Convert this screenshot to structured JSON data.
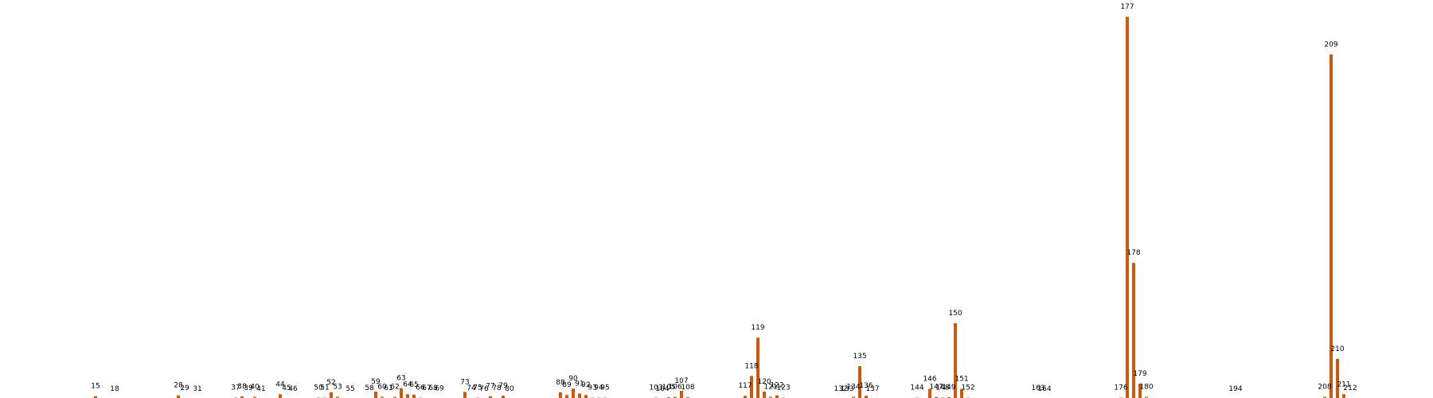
{
  "chart_data": {
    "type": "bar",
    "title": "",
    "xlabel": "",
    "ylabel": "",
    "bar_color": "#cc5a0a",
    "label_color": "#000000",
    "background": "#ffffff",
    "grid": false,
    "axes_visible": false,
    "xlim": [
      0,
      225
    ],
    "ylim": [
      0,
      1000
    ],
    "x": [
      15,
      18,
      28,
      29,
      31,
      37,
      38,
      39,
      40,
      41,
      44,
      45,
      46,
      50,
      51,
      52,
      53,
      55,
      58,
      59,
      60,
      61,
      62,
      63,
      64,
      65,
      66,
      67,
      68,
      69,
      73,
      74,
      75,
      76,
      77,
      78,
      79,
      80,
      88,
      89,
      90,
      91,
      92,
      93,
      94,
      95,
      103,
      104,
      105,
      106,
      107,
      108,
      117,
      118,
      119,
      120,
      121,
      122,
      123,
      132,
      133,
      134,
      135,
      136,
      137,
      144,
      146,
      147,
      148,
      149,
      150,
      151,
      152,
      163,
      164,
      176,
      177,
      178,
      179,
      180,
      194,
      208,
      209,
      210,
      211,
      212
    ],
    "values": [
      7,
      0,
      9,
      2,
      0,
      3,
      6,
      2,
      5,
      0,
      12,
      2,
      0,
      3,
      3,
      17,
      5,
      0,
      2,
      19,
      5,
      2,
      5,
      28,
      12,
      11,
      3,
      2,
      2,
      1,
      18,
      2,
      3,
      0,
      7,
      2,
      8,
      0,
      17,
      10,
      27,
      14,
      10,
      3,
      3,
      3,
      3,
      0,
      4,
      5,
      21,
      4,
      8,
      60,
      161,
      19,
      5,
      9,
      3,
      0,
      0,
      5,
      86,
      8,
      0,
      3,
      26,
      5,
      3,
      4,
      199,
      26,
      3,
      2,
      0,
      3,
      1006,
      358,
      40,
      5,
      0,
      5,
      907,
      105,
      12,
      2
    ],
    "labels": [
      "15",
      "18",
      "28",
      "29",
      "31",
      "37",
      "38",
      "39",
      "40",
      "41",
      "44",
      "45",
      "46",
      "50",
      "51",
      "52",
      "53",
      "55",
      "58",
      "59",
      "60",
      "61",
      "62",
      "63",
      "64",
      "65",
      "66",
      "67",
      "68",
      "69",
      "73",
      "74",
      "75",
      "76",
      "77",
      "78",
      "79",
      "80",
      "88",
      "89",
      "90",
      "91",
      "92",
      "93",
      "94",
      "95",
      "103",
      "104",
      "105",
      "106",
      "107",
      "108",
      "117",
      "118",
      "119",
      "120",
      "121",
      "122",
      "123",
      "132",
      "133",
      "134",
      "135",
      "136",
      "137",
      "144",
      "146",
      "147",
      "148",
      "149",
      "150",
      "151",
      "152",
      "163",
      "164",
      "176",
      "177",
      "178",
      "179",
      "180",
      "194",
      "208",
      "209",
      "210",
      "211",
      "212"
    ]
  }
}
